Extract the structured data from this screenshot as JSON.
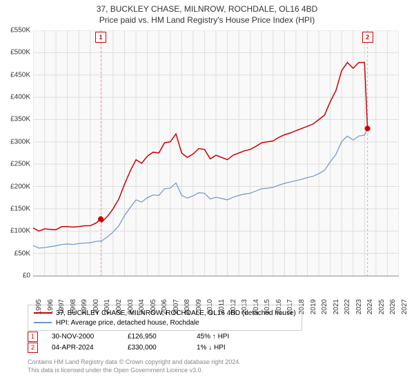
{
  "title": {
    "main": "37, BUCKLEY CHASE, MILNROW, ROCHDALE, OL16 4BD",
    "sub": "Price paid vs. HM Land Registry's House Price Index (HPI)"
  },
  "chart": {
    "type": "line",
    "background_color": "#f9f9f9",
    "grid_color": "#dddddd",
    "axis_color": "#999999",
    "x_domain": [
      1995,
      2027
    ],
    "x_ticks": [
      1995,
      1996,
      1997,
      1998,
      1999,
      2000,
      2001,
      2002,
      2003,
      2004,
      2005,
      2006,
      2007,
      2008,
      2009,
      2010,
      2011,
      2012,
      2013,
      2014,
      2015,
      2016,
      2017,
      2018,
      2019,
      2020,
      2021,
      2022,
      2023,
      2024,
      2025,
      2026,
      2027
    ],
    "y_domain": [
      0,
      550
    ],
    "y_ticks": [
      0,
      50,
      100,
      150,
      200,
      250,
      300,
      350,
      400,
      450,
      500,
      550
    ],
    "y_tick_labels": [
      "£0",
      "£50K",
      "£100K",
      "£150K",
      "£200K",
      "£250K",
      "£300K",
      "£350K",
      "£400K",
      "£450K",
      "£500K",
      "£550K"
    ],
    "series": [
      {
        "name": "property",
        "label": "37, BUCKLEY CHASE, MILNROW, ROCHDALE, OL16 4BD (detached house)",
        "color": "#cc0000",
        "width": 1.5,
        "data": [
          [
            1995,
            107
          ],
          [
            1995.5,
            100
          ],
          [
            1996,
            105
          ],
          [
            1996.5,
            104
          ],
          [
            1997,
            103
          ],
          [
            1997.5,
            110
          ],
          [
            1998,
            110
          ],
          [
            1998.5,
            109
          ],
          [
            1999,
            110
          ],
          [
            1999.5,
            112
          ],
          [
            2000,
            112
          ],
          [
            2000.5,
            118
          ],
          [
            2000.92,
            127
          ],
          [
            2001,
            120
          ],
          [
            2001.5,
            133
          ],
          [
            2002,
            150
          ],
          [
            2002.5,
            172
          ],
          [
            2003,
            205
          ],
          [
            2003.5,
            235
          ],
          [
            2004,
            260
          ],
          [
            2004.5,
            252
          ],
          [
            2005,
            268
          ],
          [
            2005.5,
            277
          ],
          [
            2006,
            275
          ],
          [
            2006.5,
            298
          ],
          [
            2007,
            300
          ],
          [
            2007.5,
            318
          ],
          [
            2008,
            275
          ],
          [
            2008.5,
            265
          ],
          [
            2009,
            273
          ],
          [
            2009.5,
            285
          ],
          [
            2010,
            283
          ],
          [
            2010.5,
            262
          ],
          [
            2011,
            270
          ],
          [
            2011.5,
            265
          ],
          [
            2012,
            260
          ],
          [
            2012.5,
            270
          ],
          [
            2013,
            275
          ],
          [
            2013.5,
            280
          ],
          [
            2014,
            283
          ],
          [
            2014.5,
            290
          ],
          [
            2015,
            298
          ],
          [
            2015.5,
            300
          ],
          [
            2016,
            302
          ],
          [
            2016.5,
            310
          ],
          [
            2017,
            316
          ],
          [
            2017.5,
            320
          ],
          [
            2018,
            325
          ],
          [
            2018.5,
            330
          ],
          [
            2019,
            335
          ],
          [
            2019.5,
            340
          ],
          [
            2020,
            350
          ],
          [
            2020.5,
            360
          ],
          [
            2021,
            390
          ],
          [
            2021.5,
            415
          ],
          [
            2022,
            460
          ],
          [
            2022.5,
            478
          ],
          [
            2023,
            465
          ],
          [
            2023.5,
            478
          ],
          [
            2024,
            478
          ],
          [
            2024.26,
            330
          ]
        ]
      },
      {
        "name": "hpi",
        "label": "HPI: Average price, detached house, Rochdale",
        "color": "#6b95c9",
        "width": 1.2,
        "data": [
          [
            1995,
            68
          ],
          [
            1995.5,
            62
          ],
          [
            1996,
            63
          ],
          [
            1996.5,
            65
          ],
          [
            1997,
            67
          ],
          [
            1997.5,
            70
          ],
          [
            1998,
            71
          ],
          [
            1998.5,
            70
          ],
          [
            1999,
            72
          ],
          [
            1999.5,
            73
          ],
          [
            2000,
            74
          ],
          [
            2000.5,
            77
          ],
          [
            2001,
            78
          ],
          [
            2001.5,
            87
          ],
          [
            2002,
            98
          ],
          [
            2002.5,
            112
          ],
          [
            2003,
            135
          ],
          [
            2003.5,
            153
          ],
          [
            2004,
            170
          ],
          [
            2004.5,
            165
          ],
          [
            2005,
            175
          ],
          [
            2005.5,
            181
          ],
          [
            2006,
            180
          ],
          [
            2006.5,
            195
          ],
          [
            2007,
            196
          ],
          [
            2007.5,
            208
          ],
          [
            2008,
            180
          ],
          [
            2008.5,
            174
          ],
          [
            2009,
            179
          ],
          [
            2009.5,
            186
          ],
          [
            2010,
            185
          ],
          [
            2010.5,
            172
          ],
          [
            2011,
            176
          ],
          [
            2011.5,
            173
          ],
          [
            2012,
            170
          ],
          [
            2012.5,
            176
          ],
          [
            2013,
            180
          ],
          [
            2013.5,
            183
          ],
          [
            2014,
            185
          ],
          [
            2014.5,
            190
          ],
          [
            2015,
            195
          ],
          [
            2015.5,
            196
          ],
          [
            2016,
            198
          ],
          [
            2016.5,
            203
          ],
          [
            2017,
            207
          ],
          [
            2017.5,
            210
          ],
          [
            2018,
            213
          ],
          [
            2018.5,
            216
          ],
          [
            2019,
            220
          ],
          [
            2019.5,
            223
          ],
          [
            2020,
            229
          ],
          [
            2020.5,
            236
          ],
          [
            2021,
            255
          ],
          [
            2021.5,
            272
          ],
          [
            2022,
            301
          ],
          [
            2022.5,
            313
          ],
          [
            2023,
            304
          ],
          [
            2023.5,
            313
          ],
          [
            2024,
            315
          ],
          [
            2024.26,
            330
          ]
        ]
      }
    ],
    "transaction_markers": [
      {
        "n": "1",
        "x": 2000.92,
        "y": 127,
        "guide_color": "#e8a0a0"
      },
      {
        "n": "2",
        "x": 2024.26,
        "y": 330,
        "guide_color": "#e8a0a0"
      }
    ],
    "marker_dot_color": "#cc0000",
    "marker_dot_radius": 4
  },
  "legend": {
    "items": [
      {
        "color": "#cc0000",
        "label": "37, BUCKLEY CHASE, MILNROW, ROCHDALE, OL16 4BD (detached house)"
      },
      {
        "color": "#6b95c9",
        "label": "HPI: Average price, detached house, Rochdale"
      }
    ]
  },
  "transactions": [
    {
      "n": "1",
      "date": "30-NOV-2000",
      "price": "£126,950",
      "pct": "45% ↑ HPI"
    },
    {
      "n": "2",
      "date": "04-APR-2024",
      "price": "£330,000",
      "pct": "1% ↓ HPI"
    }
  ],
  "footer": {
    "line1": "Contains HM Land Registry data © Crown copyright and database right 2024.",
    "line2": "This data is licensed under the Open Government Licence v3.0."
  }
}
